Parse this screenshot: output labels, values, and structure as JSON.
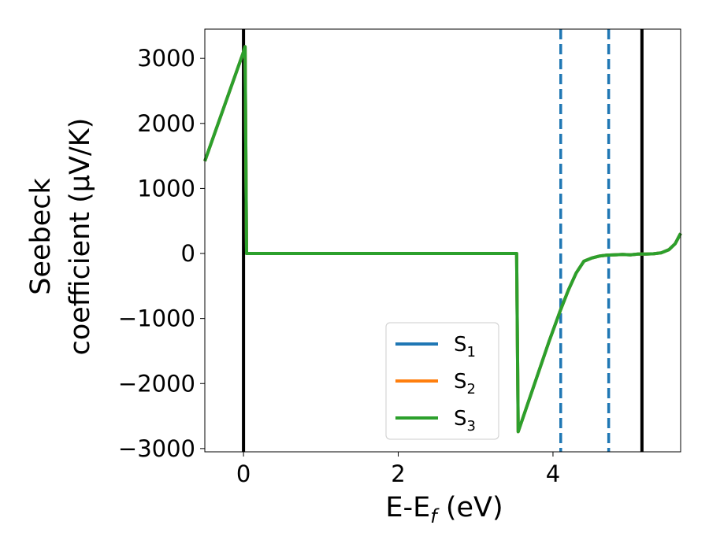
{
  "chart_data": {
    "type": "line",
    "xlabel": "E-E",
    "xlabel_sub": "f",
    "xlabel_unit": " (eV)",
    "ylabel_line1": "Seebeck",
    "ylabel_line2": "coefficient  (μV/K)",
    "xlim": [
      -0.5,
      5.65
    ],
    "ylim": [
      -3050,
      3450
    ],
    "x_ticks": [
      0,
      2,
      4
    ],
    "x_tick_labels": [
      "0",
      "2",
      "4"
    ],
    "y_ticks": [
      3000,
      2000,
      1000,
      0,
      -1000,
      -2000,
      -3000
    ],
    "y_tick_labels": [
      "3000",
      "2000",
      "1000",
      "0",
      "−1000",
      "−2000",
      "−3000"
    ],
    "grid": false,
    "legend_position": "lower-center",
    "vertical_lines": [
      {
        "x": 0.0,
        "style": "solid",
        "color": "#000000"
      },
      {
        "x": 5.15,
        "style": "solid",
        "color": "#000000"
      },
      {
        "x": 4.1,
        "style": "dashed",
        "color": "#1f77b4"
      },
      {
        "x": 4.72,
        "style": "dashed",
        "color": "#1f77b4"
      }
    ],
    "series": [
      {
        "name": "S",
        "sub": "1",
        "color": "#1f77b4",
        "x": [
          -0.5,
          0.0,
          0.02,
          0.04,
          3.53,
          3.55,
          3.95,
          4.1,
          4.2,
          4.3,
          4.4,
          4.5,
          4.6,
          4.7,
          4.8,
          4.9,
          5.0,
          5.1,
          5.2,
          5.3,
          5.4,
          5.5,
          5.58,
          5.65
        ],
        "values": [
          1420,
          3100,
          3180,
          0,
          0,
          -2740,
          -1350,
          -860,
          -560,
          -300,
          -120,
          -70,
          -40,
          -25,
          -20,
          -15,
          -20,
          -10,
          -10,
          -5,
          10,
          60,
          150,
          310
        ]
      },
      {
        "name": "S",
        "sub": "2",
        "color": "#ff7f0e",
        "x": [
          -0.5,
          0.0,
          0.02,
          0.04,
          3.53,
          3.55,
          3.95,
          4.1,
          4.2,
          4.3,
          4.4,
          4.5,
          4.6,
          4.7,
          4.8,
          4.9,
          5.0,
          5.1,
          5.2,
          5.3,
          5.4,
          5.5,
          5.58,
          5.65
        ],
        "values": [
          1420,
          3100,
          3180,
          0,
          0,
          -2740,
          -1350,
          -860,
          -560,
          -300,
          -120,
          -70,
          -40,
          -25,
          -20,
          -15,
          -20,
          -10,
          -10,
          -5,
          10,
          60,
          150,
          310
        ]
      },
      {
        "name": "S",
        "sub": "3",
        "color": "#2ca02c",
        "x": [
          -0.5,
          0.0,
          0.02,
          0.04,
          3.53,
          3.55,
          3.95,
          4.1,
          4.2,
          4.3,
          4.4,
          4.5,
          4.6,
          4.7,
          4.8,
          4.9,
          5.0,
          5.1,
          5.2,
          5.3,
          5.4,
          5.5,
          5.58,
          5.65
        ],
        "values": [
          1420,
          3100,
          3180,
          0,
          0,
          -2740,
          -1350,
          -860,
          -560,
          -300,
          -120,
          -70,
          -40,
          -25,
          -20,
          -15,
          -20,
          -10,
          -10,
          -5,
          10,
          60,
          150,
          310
        ]
      }
    ]
  }
}
